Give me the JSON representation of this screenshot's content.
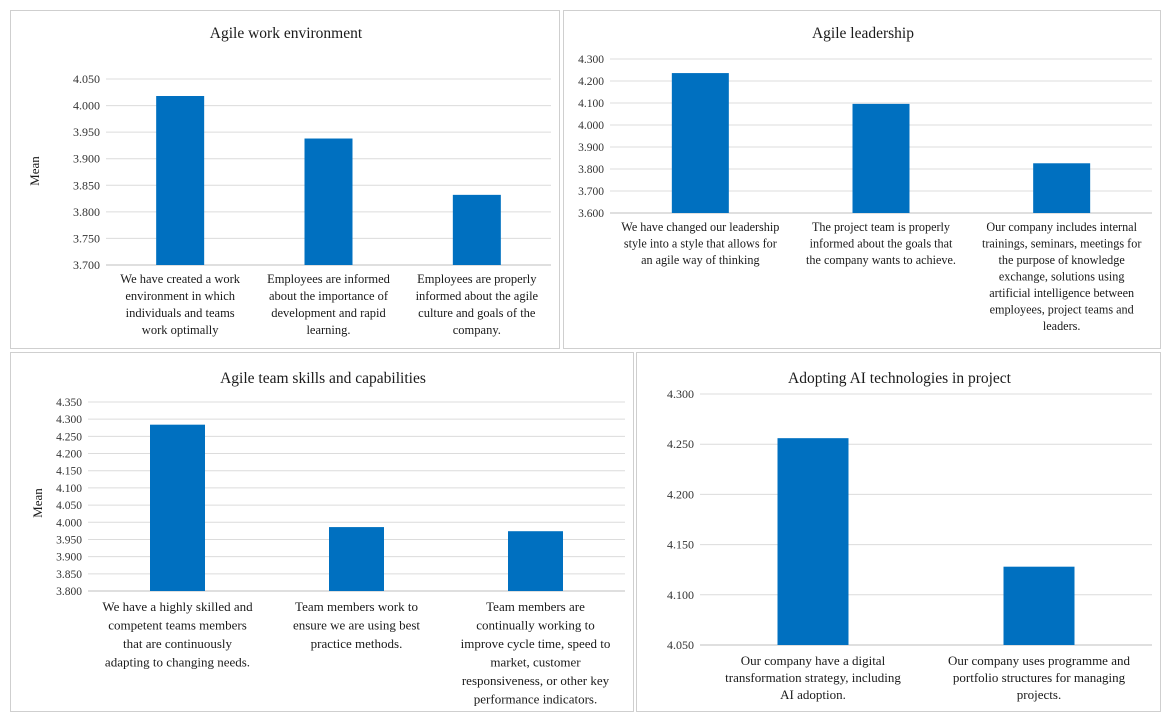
{
  "chart_data": [
    {
      "type": "bar",
      "title": "Agile work environment",
      "ylabel": "Mean",
      "ylim": [
        3.7,
        4.05
      ],
      "yticks": [
        "3.700",
        "3.750",
        "3.800",
        "3.850",
        "3.900",
        "3.950",
        "4.000",
        "4.050"
      ],
      "categories": [
        [
          "We have created a work",
          "environment in which",
          "individuals and teams",
          "work optimally"
        ],
        [
          "Employees are informed",
          "about the importance of",
          "development and rapid",
          "learning."
        ],
        [
          "Employees are properly",
          "informed about the agile",
          "culture and goals of the",
          "company."
        ]
      ],
      "values": [
        4.018,
        3.938,
        3.832
      ],
      "color": "#0070C0",
      "grid": true
    },
    {
      "type": "bar",
      "title": "Agile leadership",
      "ylabel": "",
      "ylim": [
        3.6,
        4.3
      ],
      "yticks": [
        "3.600",
        "3.700",
        "3.800",
        "3.900",
        "4.000",
        "4.100",
        "4.200",
        "4.300"
      ],
      "categories": [
        [
          "We have changed our leadership",
          "style into a style that allows for",
          "an agile way of thinking"
        ],
        [
          "The project team is properly",
          "informed about the goals that",
          "the company wants to achieve."
        ],
        [
          "Our company includes internal",
          "trainings, seminars, meetings for",
          "the purpose of knowledge",
          "exchange, solutions using",
          "artificial intelligence between",
          "employees, project teams and",
          "leaders."
        ]
      ],
      "values": [
        4.236,
        4.096,
        3.826
      ],
      "color": "#0070C0",
      "grid": true
    },
    {
      "type": "bar",
      "title": "Agile team skills and capabilities",
      "ylabel": "Mean",
      "ylim": [
        3.8,
        4.35
      ],
      "yticks": [
        "3.800",
        "3.850",
        "3.900",
        "3.950",
        "4.000",
        "4.050",
        "4.100",
        "4.150",
        "4.200",
        "4.250",
        "4.300",
        "4.350"
      ],
      "categories": [
        [
          "We have a highly skilled and",
          "competent teams members",
          "that are continuously",
          "adapting to changing needs."
        ],
        [
          "Team members work to",
          "ensure we are using best",
          "practice methods."
        ],
        [
          "Team members are",
          "continually working to",
          "improve cycle time, speed to",
          "market, customer",
          "responsiveness, or other key",
          "performance indicators."
        ]
      ],
      "values": [
        4.284,
        3.986,
        3.974
      ],
      "color": "#0070C0",
      "grid": true
    },
    {
      "type": "bar",
      "title": "Adopting AI technologies in project",
      "ylabel": "",
      "ylim": [
        4.05,
        4.3
      ],
      "yticks": [
        "4.050",
        "4.100",
        "4.150",
        "4.200",
        "4.250",
        "4.300"
      ],
      "categories": [
        [
          "Our company have a digital",
          "transformation strategy, including",
          "AI adoption."
        ],
        [
          "Our company uses programme and",
          "portfolio structures for managing",
          "projects."
        ]
      ],
      "values": [
        4.256,
        4.128
      ],
      "color": "#0070C0",
      "grid": true
    }
  ]
}
